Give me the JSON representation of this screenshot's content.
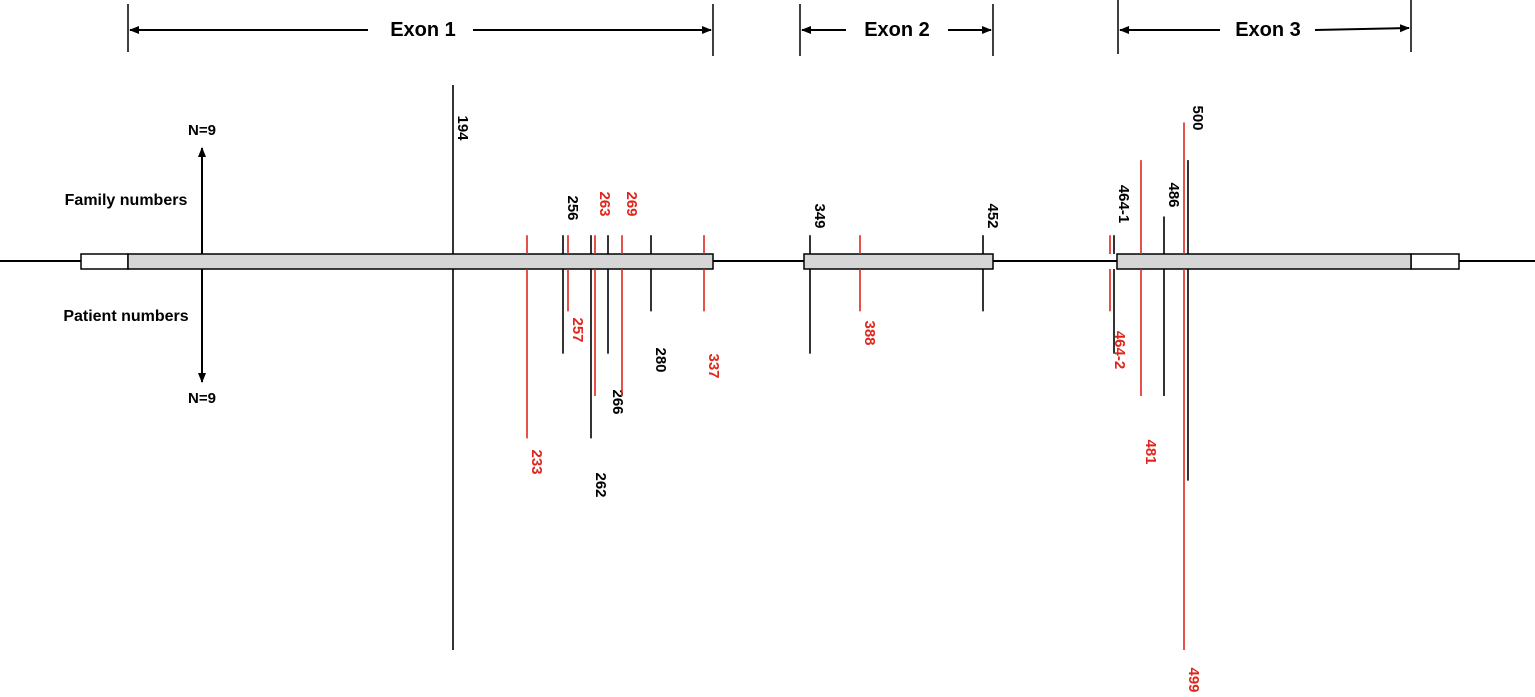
{
  "colors": {
    "black": "#000000",
    "red": "#e0261c",
    "exon_fill": "#d6d6d6",
    "utr_fill": "#ffffff"
  },
  "exon_headers": [
    {
      "label": "Exon 1"
    },
    {
      "label": "Exon 2"
    },
    {
      "label": "Exon 3"
    }
  ],
  "axis": {
    "family_label": "Family numbers",
    "patient_label": "Patient numbers",
    "top_n": "N=9",
    "bottom_n": "N=9"
  },
  "mutations": [
    {
      "label": "194",
      "color": "black",
      "family": 9,
      "patients": 9
    },
    {
      "label": "233",
      "color": "red",
      "family": 1,
      "patients": 4
    },
    {
      "label": "256",
      "color": "black",
      "family": 1,
      "patients": 2
    },
    {
      "label": "257",
      "color": "red",
      "family": 1,
      "patients": 1
    },
    {
      "label": "262",
      "color": "black",
      "family": 1,
      "patients": 4
    },
    {
      "label": "263",
      "color": "red",
      "family": 1,
      "patients": 3
    },
    {
      "label": "266",
      "color": "black",
      "family": 1,
      "patients": 2
    },
    {
      "label": "269",
      "color": "red",
      "family": 1,
      "patients": 3
    },
    {
      "label": "280",
      "color": "black",
      "family": 1,
      "patients": 1
    },
    {
      "label": "337",
      "color": "red",
      "family": 1,
      "patients": 1
    },
    {
      "label": "349",
      "color": "black",
      "family": 1,
      "patients": 2
    },
    {
      "label": "388",
      "color": "red",
      "family": 1,
      "patients": 1
    },
    {
      "label": "452",
      "color": "black",
      "family": 1,
      "patients": 1
    },
    {
      "label": "464-1",
      "color": "black",
      "family": 1,
      "patients": 2
    },
    {
      "label": "464-2",
      "color": "red",
      "family": 1,
      "patients": 1
    },
    {
      "label": "481",
      "color": "red",
      "family": 5,
      "patients": 3
    },
    {
      "label": "486",
      "color": "black",
      "family": 2,
      "patients": 3
    },
    {
      "label": "499",
      "color": "red",
      "family": 7,
      "patients": 9
    },
    {
      "label": "500",
      "color": "black",
      "family": 5,
      "patients": 5
    }
  ]
}
